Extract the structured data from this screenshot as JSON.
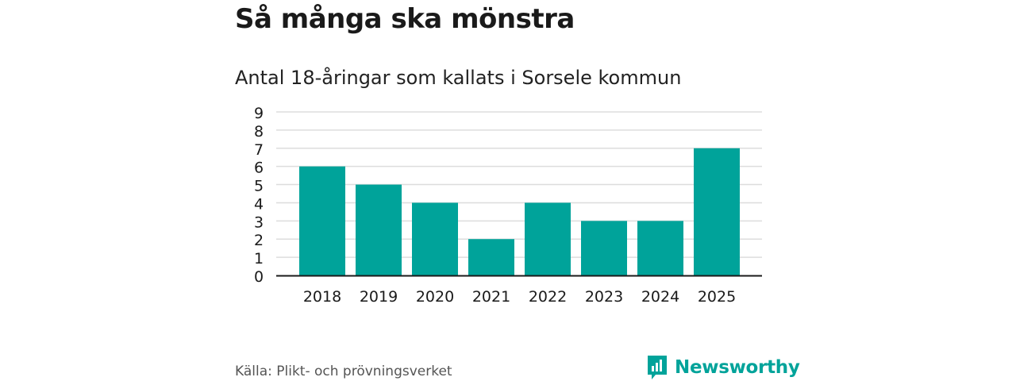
{
  "title": "Så många ska mönstra",
  "subtitle": "Antal 18-åringar som kallats i Sorsele kommun",
  "source": "Källa: Plikt- och prövningsverket",
  "brand": "Newsworthy",
  "colors": {
    "bar": "#00a39a",
    "brand": "#00a39a",
    "grid": "#dddddd",
    "axis": "#1a1a1a"
  },
  "chart_data": {
    "type": "bar",
    "title": "Så många ska mönstra",
    "subtitle": "Antal 18-åringar som kallats i Sorsele kommun",
    "categories": [
      "2018",
      "2019",
      "2020",
      "2021",
      "2022",
      "2023",
      "2024",
      "2025"
    ],
    "values": [
      6,
      5,
      4,
      2,
      4,
      3,
      3,
      7
    ],
    "xlabel": "",
    "ylabel": "",
    "ylim": [
      0,
      9
    ],
    "yticks": [
      0,
      1,
      2,
      3,
      4,
      5,
      6,
      7,
      8,
      9
    ],
    "grid": true,
    "legend": "none"
  }
}
